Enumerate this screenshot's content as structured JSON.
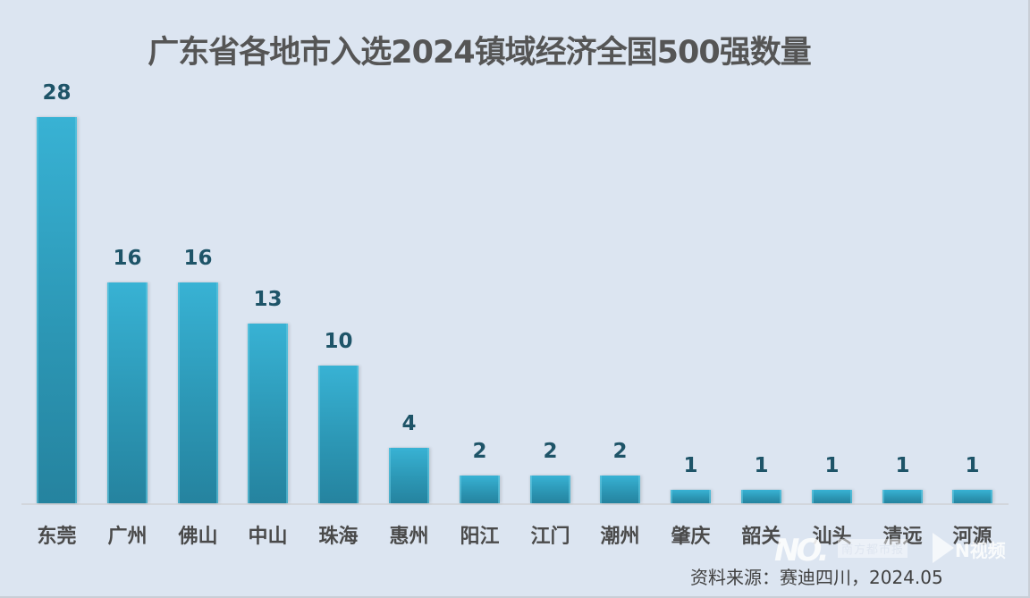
{
  "title": "广东省各地市入选2024镇域经济全国500强数量",
  "source": "资料来源：赛迪四川，2024.05",
  "watermark": {
    "logo_text": "NO.",
    "paper_name": "南方都市报",
    "video_text": "N视频"
  },
  "colors": {
    "background": "#dce5f1",
    "bar_top": "#38b2d4",
    "bar_bottom": "#25839f",
    "value_label": "#1e5468",
    "category_label": "#4a4a4a",
    "title": "#555555"
  },
  "chart_data": {
    "type": "bar",
    "title": "广东省各地市入选2024镇域经济全国500强数量",
    "xlabel": "",
    "ylabel": "",
    "categories": [
      "东莞",
      "广州",
      "佛山",
      "中山",
      "珠海",
      "惠州",
      "阳江",
      "江门",
      "潮州",
      "肇庆",
      "韶关",
      "汕头",
      "清远",
      "河源"
    ],
    "values": [
      28,
      16,
      16,
      13,
      10,
      4,
      2,
      2,
      2,
      1,
      1,
      1,
      1,
      1
    ],
    "ylim": [
      0,
      28
    ],
    "grid": false,
    "legend": "none",
    "data_labels": true,
    "annotations": [
      "资料来源：赛迪四川，2024.05"
    ]
  }
}
